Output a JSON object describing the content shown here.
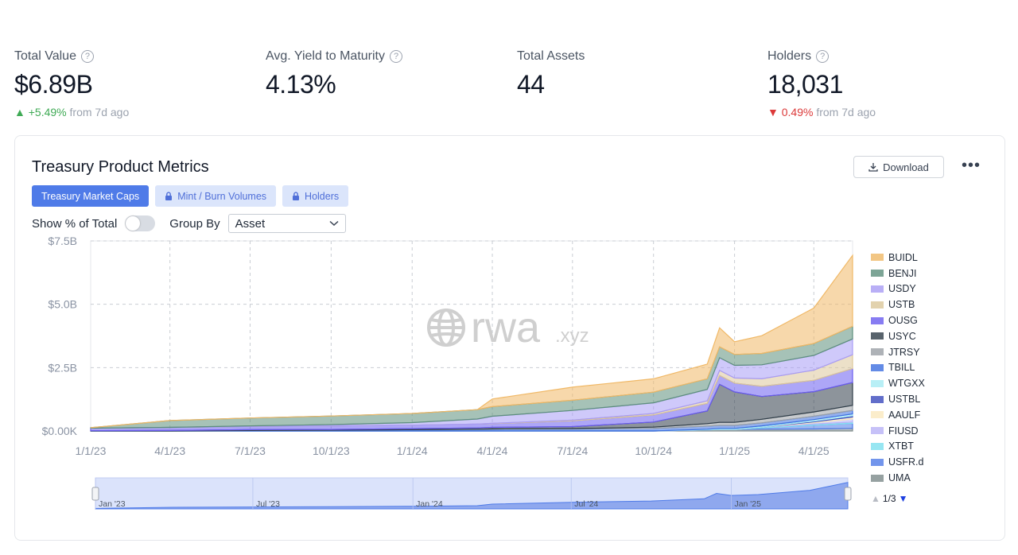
{
  "stats": [
    {
      "label": "Total Value",
      "value": "$6.89B",
      "has_help": true,
      "change": "+5.49%",
      "change_suffix": "from 7d ago",
      "direction": "up"
    },
    {
      "label": "Avg. Yield to Maturity",
      "value": "4.13%",
      "has_help": true
    },
    {
      "label": "Total Assets",
      "value": "44",
      "has_help": false
    },
    {
      "label": "Holders",
      "value": "18,031",
      "has_help": true,
      "change": "0.49%",
      "change_suffix": "from 7d ago",
      "direction": "down"
    }
  ],
  "icons": {
    "help": "question-circle-icon",
    "lock": "lock-icon",
    "download": "download-icon",
    "more": "more-dots-icon",
    "globe": "globe-icon"
  },
  "card": {
    "title": "Treasury Product Metrics",
    "download_label": "Download",
    "tabs": [
      {
        "label": "Treasury Market Caps",
        "active": true,
        "locked": false
      },
      {
        "label": "Mint / Burn Volumes",
        "active": false,
        "locked": true
      },
      {
        "label": "Holders",
        "active": false,
        "locked": true
      }
    ],
    "show_pct_label": "Show % of Total",
    "show_pct_on": false,
    "group_by_label": "Group By",
    "group_by_value": "Asset",
    "watermark": "rwa",
    "watermark_suffix": ".xyz",
    "pager": "1/3",
    "navigator_ticks": [
      "Jan '23",
      "Jul '23",
      "Jan '24",
      "Jul '24",
      "Jan '25"
    ]
  },
  "chart_data": {
    "type": "area",
    "stacked": true,
    "x_tick_labels": [
      "1/1/23",
      "4/1/23",
      "7/1/23",
      "10/1/23",
      "1/1/24",
      "4/1/24",
      "7/1/24",
      "10/1/24",
      "1/1/25",
      "4/1/25"
    ],
    "y_tick_labels": [
      "$0.00K",
      "$2.5B",
      "$5.0B",
      "$7.5B"
    ],
    "ylim": [
      0,
      7.5
    ],
    "y_unit": "B",
    "grid": true,
    "legend_position": "right",
    "x": [
      "1/1/23",
      "4/1/23",
      "7/1/23",
      "10/1/23",
      "1/1/24",
      "3/15/24",
      "4/1/24",
      "7/1/24",
      "10/1/24",
      "12/1/24",
      "12/15/24",
      "1/1/25",
      "2/1/25",
      "4/1/25",
      "5/15/25"
    ],
    "series": [
      {
        "name": "UMA",
        "color": "#7d8a8a",
        "values": [
          0,
          0,
          0,
          0,
          0,
          0,
          0,
          0,
          0,
          0.04,
          0.06,
          0.06,
          0.07,
          0.08,
          0.1
        ]
      },
      {
        "name": "USFR.d",
        "color": "#4f7be8",
        "values": [
          0,
          0,
          0,
          0,
          0,
          0,
          0,
          0,
          0,
          0,
          0,
          0,
          0.05,
          0.15,
          0.2
        ]
      },
      {
        "name": "XTBT",
        "color": "#7ee0f0",
        "values": [
          0,
          0,
          0,
          0,
          0,
          0,
          0,
          0,
          0,
          0,
          0,
          0,
          0.03,
          0.04,
          0.05
        ]
      },
      {
        "name": "FIUSD",
        "color": "#b9b2f7",
        "values": [
          0,
          0,
          0,
          0,
          0,
          0,
          0,
          0,
          0,
          0,
          0,
          0,
          0,
          0.05,
          0.12
        ]
      },
      {
        "name": "AAULF",
        "color": "#fbe9bf",
        "values": [
          0,
          0,
          0,
          0,
          0,
          0,
          0,
          0,
          0,
          0,
          0,
          0,
          0,
          0.04,
          0.08
        ]
      },
      {
        "name": "USTBL",
        "color": "#3b4abd",
        "values": [
          0,
          0,
          0,
          0,
          0,
          0,
          0,
          0,
          0,
          0,
          0,
          0,
          0,
          0.03,
          0.05
        ]
      },
      {
        "name": "WTGXX",
        "color": "#a7ecf5",
        "values": [
          0,
          0,
          0,
          0,
          0,
          0,
          0,
          0,
          0,
          0.03,
          0.04,
          0.04,
          0.05,
          0.06,
          0.07
        ]
      },
      {
        "name": "TBILL",
        "color": "#3d6fe0",
        "values": [
          0,
          0,
          0.02,
          0.03,
          0.05,
          0.07,
          0.08,
          0.09,
          0.1,
          0.12,
          0.12,
          0.12,
          0.12,
          0.13,
          0.14
        ]
      },
      {
        "name": "JTRSY",
        "color": "#9aa0a6",
        "values": [
          0,
          0,
          0,
          0,
          0,
          0,
          0,
          0,
          0.05,
          0.1,
          0.12,
          0.12,
          0.14,
          0.17,
          0.2
        ]
      },
      {
        "name": "USYC",
        "color": "#2f3d48",
        "values": [
          0.01,
          0.02,
          0.03,
          0.03,
          0.04,
          0.05,
          0.06,
          0.08,
          0.2,
          0.5,
          1.5,
          1.2,
          0.9,
          0.8,
          0.9
        ]
      },
      {
        "name": "OUSG",
        "color": "#6a5cf0",
        "values": [
          0.1,
          0.12,
          0.13,
          0.14,
          0.14,
          0.15,
          0.15,
          0.23,
          0.28,
          0.3,
          0.35,
          0.35,
          0.4,
          0.45,
          0.55
        ]
      },
      {
        "name": "USTB",
        "color": "#dcc79a",
        "values": [
          0,
          0,
          0,
          0,
          0,
          0,
          0.01,
          0.03,
          0.06,
          0.1,
          0.2,
          0.2,
          0.3,
          0.4,
          0.55
        ]
      },
      {
        "name": "USDY",
        "color": "#a89cf5",
        "values": [
          0,
          0,
          0.02,
          0.05,
          0.1,
          0.2,
          0.28,
          0.38,
          0.42,
          0.45,
          0.5,
          0.5,
          0.55,
          0.58,
          0.62
        ]
      },
      {
        "name": "BENJI",
        "color": "#5d8f7c",
        "values": [
          0.02,
          0.27,
          0.31,
          0.34,
          0.36,
          0.37,
          0.38,
          0.4,
          0.42,
          0.42,
          0.43,
          0.43,
          0.45,
          0.47,
          0.5
        ]
      },
      {
        "name": "BUIDL",
        "color": "#f0b866",
        "values": [
          0,
          0,
          0,
          0,
          0,
          0,
          0.3,
          0.52,
          0.53,
          0.58,
          0.75,
          0.5,
          0.7,
          1.4,
          2.8
        ]
      }
    ]
  }
}
